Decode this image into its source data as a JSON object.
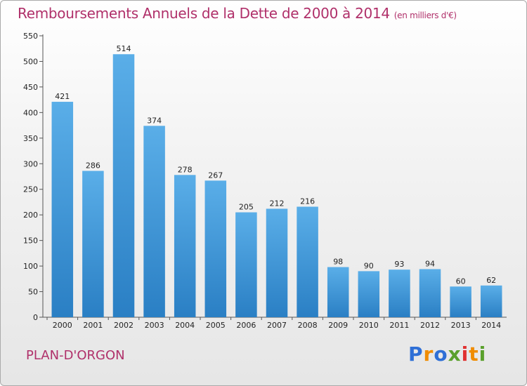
{
  "header": {
    "title": "Remboursements Annuels de la Dette de 2000 à 2014",
    "unit": "(en milliers d'€)"
  },
  "footer": {
    "commune": "PLAN-D'ORGON",
    "logo_letters": [
      "P",
      "r",
      "o",
      "x",
      "i",
      "t",
      "i"
    ],
    "logo_colors": [
      "#2e6fd6",
      "#f08c00",
      "#2e6fd6",
      "#5aa02c",
      "#e03131",
      "#f08c00",
      "#5aa02c"
    ]
  },
  "colors": {
    "bar_light": "#5aaee8",
    "bar_dark": "#2a7fc4",
    "title": "#b0306a"
  },
  "chart_data": {
    "type": "bar",
    "title": "Remboursements Annuels de la Dette de 2000 à 2014",
    "categories": [
      "2000",
      "2001",
      "2002",
      "2003",
      "2004",
      "2005",
      "2006",
      "2007",
      "2008",
      "2009",
      "2010",
      "2011",
      "2012",
      "2013",
      "2014"
    ],
    "values": [
      421,
      286,
      514,
      374,
      278,
      267,
      205,
      212,
      216,
      98,
      90,
      93,
      94,
      60,
      62
    ],
    "ylim": [
      0,
      550
    ],
    "yticks": [
      0,
      50,
      100,
      150,
      200,
      250,
      300,
      350,
      400,
      450,
      500,
      550
    ],
    "grid": false
  }
}
